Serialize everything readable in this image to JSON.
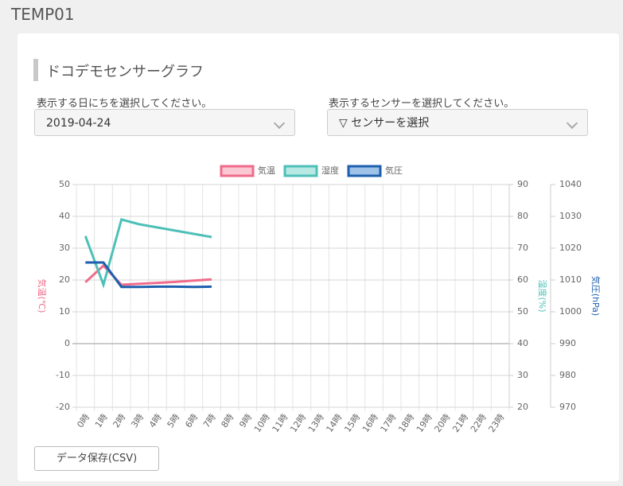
{
  "header": {
    "title": "TEMP01"
  },
  "section": {
    "heading": "ドコデモセンサーグラフ"
  },
  "form": {
    "date_label": "表示する日にちを選択してください。",
    "date_value": "2019-04-24",
    "sensor_label": "表示するセンサーを選択してください。",
    "sensor_value": "▽ センサーを選択"
  },
  "button": {
    "label": "データ保存(CSV)"
  },
  "chart_data": {
    "type": "line",
    "categories": [
      "0時",
      "1時",
      "2時",
      "3時",
      "4時",
      "5時",
      "6時",
      "7時",
      "8時",
      "9時",
      "10時",
      "11時",
      "12時",
      "13時",
      "14時",
      "15時",
      "16時",
      "17時",
      "18時",
      "19時",
      "20時",
      "21時",
      "22時",
      "23時"
    ],
    "series": [
      {
        "name": "気温",
        "color": "#f06b8a",
        "fill": "#fbc7d3",
        "axis": "y",
        "values": [
          19.3,
          24.5,
          18.5,
          18.8,
          19.1,
          19.4,
          19.8,
          20.2,
          null,
          null,
          null,
          null,
          null,
          null,
          null,
          null,
          null,
          null,
          null,
          null,
          null,
          null,
          null,
          null
        ]
      },
      {
        "name": "湿度",
        "color": "#4dc0b8",
        "fill": "#b8e8e4",
        "axis": "y2",
        "values": [
          73.8,
          58.5,
          79,
          77.5,
          76.5,
          75.5,
          74.5,
          73.5,
          null,
          null,
          null,
          null,
          null,
          null,
          null,
          null,
          null,
          null,
          null,
          null,
          null,
          null,
          null,
          null
        ]
      },
      {
        "name": "気圧",
        "color": "#1d5fae",
        "fill": "#9fc2e8",
        "axis": "y3",
        "values": [
          1015.5,
          1015.5,
          1007.8,
          1007.8,
          1007.9,
          1007.9,
          1007.8,
          1007.9,
          null,
          null,
          null,
          null,
          null,
          null,
          null,
          null,
          null,
          null,
          null,
          null,
          null,
          null,
          null,
          null
        ]
      }
    ],
    "ylabel": "気温(℃)",
    "y2label": "湿度(%)",
    "y3label": "気圧(hPa)",
    "ylim": [
      -20,
      50
    ],
    "yticks": [
      -20,
      -10,
      0,
      10,
      20,
      30,
      40,
      50
    ],
    "y2lim": [
      20,
      90
    ],
    "y2ticks": [
      20,
      30,
      40,
      50,
      60,
      70,
      80,
      90
    ],
    "y3lim": [
      970,
      1040
    ],
    "y3ticks": [
      970,
      980,
      990,
      1000,
      1010,
      1020,
      1030,
      1040
    ],
    "grid": true,
    "legend": "top"
  }
}
